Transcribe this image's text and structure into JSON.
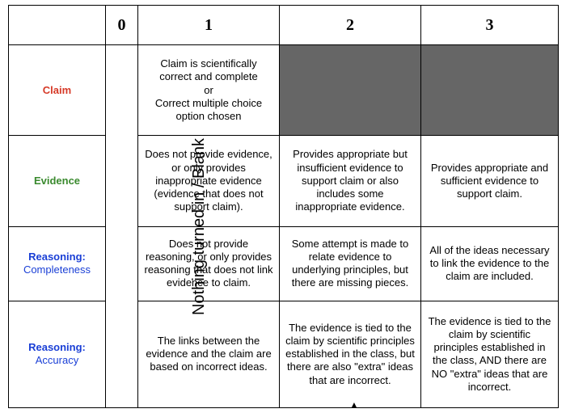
{
  "colors": {
    "claim": "#d63a28",
    "evidence": "#3a8a2e",
    "reasoning": "#1a3fd6",
    "shaded": "#666666",
    "border": "#000000",
    "bg": "#ffffff"
  },
  "header": {
    "h0": "0",
    "h1": "1",
    "h2": "2",
    "h3": "3"
  },
  "zero_label": "Nothing turned in / Blank",
  "rows": {
    "claim": {
      "label_main": "Claim",
      "c1": "Claim is scientifically correct and complete\nor\nCorrect multiple choice option chosen"
    },
    "evidence": {
      "label_main": "Evidence",
      "c1": "Does not provide evidence, or only provides inappropriate evidence (evidence that does not support claim).",
      "c2": "Provides appropriate but insufficient evidence to support claim or also includes some inappropriate evidence.",
      "c3": "Provides appropriate and sufficient evidence to support claim."
    },
    "reason_complete": {
      "label_main": "Reasoning:",
      "label_sub": "Completeness",
      "c1": "Does not provide reasoning, or only provides reasoning that does not link evidence to claim.",
      "c2": "Some attempt is made to relate evidence to underlying principles, but there are missing pieces.",
      "c3": "All of the ideas necessary to link the evidence to the claim are included."
    },
    "reason_accuracy": {
      "label_main": "Reasoning:",
      "label_sub": "Accuracy",
      "c1": "The links between the evidence and the claim are based on incorrect ideas.",
      "c2": "The evidence is tied to the claim by scientific principles established in the class, but there are also \"extra\" ideas that are incorrect.",
      "c3": "The evidence is tied to the claim by scientific principles established in the class, AND there are NO \"extra\" ideas that are incorrect."
    }
  }
}
